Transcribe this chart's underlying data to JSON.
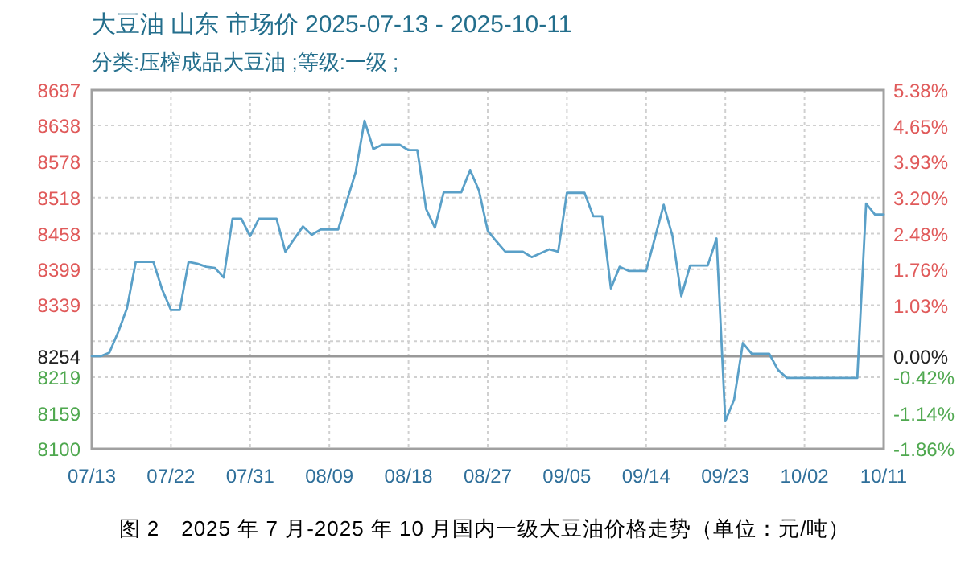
{
  "chart_data": {
    "type": "line",
    "title": "大豆油 山东 市场价 2025-07-13 - 2025-10-11",
    "subtitle": "分类:压榨成品大豆油 ;等级:一级 ;",
    "annotations": [
      "图 2　2025 年 7 月-2025 年 10 月国内一级大豆油价格走势（单位：元/吨）"
    ],
    "x": [
      "2025-07-13",
      "2025-07-14",
      "2025-07-15",
      "2025-07-16",
      "2025-07-17",
      "2025-07-18",
      "2025-07-20",
      "2025-07-21",
      "2025-07-22",
      "2025-07-23",
      "2025-07-24",
      "2025-07-25",
      "2025-07-26",
      "2025-07-27",
      "2025-07-28",
      "2025-07-29",
      "2025-07-30",
      "2025-07-31",
      "2025-08-01",
      "2025-08-03",
      "2025-08-04",
      "2025-08-06",
      "2025-08-07",
      "2025-08-08",
      "2025-08-10",
      "2025-08-12",
      "2025-08-13",
      "2025-08-14",
      "2025-08-15",
      "2025-08-17",
      "2025-08-18",
      "2025-08-19",
      "2025-08-20",
      "2025-08-21",
      "2025-08-22",
      "2025-08-24",
      "2025-08-25",
      "2025-08-26",
      "2025-08-27",
      "2025-08-28",
      "2025-08-29",
      "2025-08-31",
      "2025-09-01",
      "2025-09-03",
      "2025-09-04",
      "2025-09-05",
      "2025-09-07",
      "2025-09-08",
      "2025-09-09",
      "2025-09-10",
      "2025-09-11",
      "2025-09-12",
      "2025-09-14",
      "2025-09-16",
      "2025-09-17",
      "2025-09-18",
      "2025-09-19",
      "2025-09-21",
      "2025-09-22",
      "2025-09-23",
      "2025-09-24",
      "2025-09-25",
      "2025-09-26",
      "2025-09-28",
      "2025-09-29",
      "2025-09-30",
      "2025-10-08",
      "2025-10-09",
      "2025-10-10",
      "2025-10-11"
    ],
    "series": [
      {
        "color": "#5aa0c8",
        "values": [
          8254,
          8254,
          8260,
          8294,
          8334,
          8411,
          8411,
          8365,
          8331,
          8331,
          8411,
          8408,
          8403,
          8401,
          8385,
          8483,
          8483,
          8454,
          8483,
          8483,
          8428,
          8470,
          8456,
          8465,
          8465,
          8561,
          8646,
          8599,
          8606,
          8606,
          8597,
          8597,
          8499,
          8468,
          8527,
          8527,
          8564,
          8530,
          8463,
          8445,
          8428,
          8428,
          8419,
          8432,
          8428,
          8526,
          8526,
          8487,
          8487,
          8367,
          8403,
          8396,
          8396,
          8506,
          8454,
          8354,
          8405,
          8405,
          8450,
          8146,
          8182,
          8276,
          8258,
          8258,
          8231,
          8218,
          8218,
          8508,
          8490,
          8490
        ]
      }
    ],
    "xlim": [
      "2025-07-13",
      "2025-10-11"
    ],
    "xticks": [
      {
        "value": "2025-07-13",
        "label": "07/13"
      },
      {
        "value": "2025-07-22",
        "label": "07/22"
      },
      {
        "value": "2025-07-31",
        "label": "07/31"
      },
      {
        "value": "2025-08-09",
        "label": "08/09"
      },
      {
        "value": "2025-08-18",
        "label": "08/18"
      },
      {
        "value": "2025-08-27",
        "label": "08/27"
      },
      {
        "value": "2025-09-05",
        "label": "09/05"
      },
      {
        "value": "2025-09-14",
        "label": "09/14"
      },
      {
        "value": "2025-09-23",
        "label": "09/23"
      },
      {
        "value": "2025-10-02",
        "label": "10/02"
      },
      {
        "value": "2025-10-11",
        "label": "10/11"
      }
    ],
    "ylim": [
      8100,
      8697
    ],
    "yticks": [
      8100,
      8159,
      8219,
      8254,
      {
        "value": 8279,
        "label": null
      },
      8339,
      8399,
      8458,
      8518,
      8578,
      8638,
      8697
    ],
    "y2lim": [
      -1.86,
      5.38
    ],
    "y2ticks": [
      {
        "value": -1.86,
        "label": "-1.86%"
      },
      {
        "value": -1.14,
        "label": "-1.14%"
      },
      {
        "value": -0.42,
        "label": "-0.42%"
      },
      {
        "value": 0,
        "label": "0.00%"
      },
      {
        "value": 1.03,
        "label": "1.03%"
      },
      {
        "value": 1.76,
        "label": "1.76%"
      },
      {
        "value": 2.48,
        "label": "2.48%"
      },
      {
        "value": 3.2,
        "label": "3.20%"
      },
      {
        "value": 3.93,
        "label": "3.93%"
      },
      {
        "value": 4.65,
        "label": "4.65%"
      },
      {
        "value": 5.38,
        "label": "5.38%"
      }
    ],
    "ref_lines": [
      {
        "axis": "y",
        "value": 8254,
        "color": "#999999",
        "line_style": "solid"
      }
    ],
    "grid": true,
    "marker": "none",
    "line_style": "solid"
  }
}
